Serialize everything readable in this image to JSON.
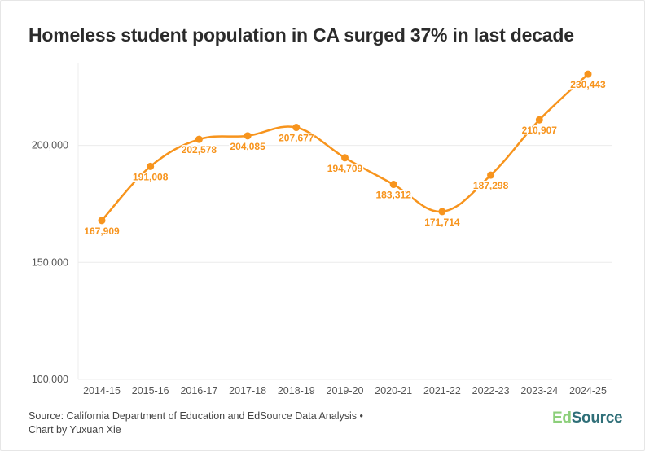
{
  "title": "Homeless student population in CA surged 37% in last decade",
  "footer": {
    "source_line": "Source: California Department of Education and EdSource Data Analysis •",
    "credit_line": "Chart by Yuxuan Xie"
  },
  "logo": {
    "part1": "Ed",
    "part2": "Source",
    "part1_color": "#8ccf7a",
    "part2_color": "#2f6f78"
  },
  "colors": {
    "line": "#f7941d",
    "label": "#f7941d",
    "grid": "#ececec",
    "axis_text": "#555555"
  },
  "chart_data": {
    "type": "line",
    "title": "Homeless student population in CA surged 37% in last decade",
    "xlabel": "",
    "ylabel": "",
    "categories": [
      "2014-15",
      "2015-16",
      "2016-17",
      "2017-18",
      "2018-19",
      "2019-20",
      "2020-21",
      "2021-22",
      "2022-23",
      "2023-24",
      "2024-25"
    ],
    "values": [
      167909,
      191008,
      202578,
      204085,
      207677,
      194709,
      183312,
      171714,
      187298,
      210907,
      230443
    ],
    "value_labels": [
      "167,909",
      "191,008",
      "202,578",
      "204,085",
      "207,677",
      "194,709",
      "183,312",
      "171,714",
      "187,298",
      "210,907",
      "230,443"
    ],
    "ylim": [
      100000,
      235000
    ],
    "yticks": [
      100000,
      150000,
      200000
    ],
    "ytick_labels": [
      "100,000",
      "150,000",
      "200,000"
    ],
    "grid": true,
    "legend": "none"
  }
}
